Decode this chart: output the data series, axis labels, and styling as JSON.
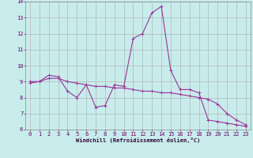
{
  "title": "",
  "xlabel": "Windchill (Refroidissement éolien,°C)",
  "ylabel": "",
  "bg_color": "#c8ecec",
  "line_color": "#993399",
  "grid_color": "#aaaaaa",
  "xlim": [
    -0.5,
    23.5
  ],
  "ylim": [
    6,
    14
  ],
  "xticks": [
    0,
    1,
    2,
    3,
    4,
    5,
    6,
    7,
    8,
    9,
    10,
    11,
    12,
    13,
    14,
    15,
    16,
    17,
    18,
    19,
    20,
    21,
    22,
    23
  ],
  "yticks": [
    6,
    7,
    8,
    9,
    10,
    11,
    12,
    13,
    14
  ],
  "series1_x": [
    0,
    1,
    2,
    3,
    4,
    5,
    6,
    7,
    8,
    9,
    10,
    11,
    12,
    13,
    14,
    15,
    16,
    17,
    18,
    19,
    20,
    21,
    22,
    23
  ],
  "series1_y": [
    8.9,
    9.0,
    9.4,
    9.3,
    8.4,
    8.0,
    8.8,
    7.4,
    7.5,
    8.8,
    8.7,
    11.7,
    12.0,
    13.3,
    13.7,
    9.7,
    8.5,
    8.5,
    8.3,
    6.6,
    6.5,
    6.4,
    6.3,
    6.2
  ],
  "series2_x": [
    0,
    1,
    2,
    3,
    4,
    5,
    6,
    7,
    8,
    9,
    10,
    11,
    12,
    13,
    14,
    15,
    16,
    17,
    18,
    19,
    20,
    21,
    22,
    23
  ],
  "series2_y": [
    9.0,
    9.0,
    9.2,
    9.2,
    9.0,
    8.9,
    8.8,
    8.7,
    8.7,
    8.6,
    8.6,
    8.5,
    8.4,
    8.4,
    8.3,
    8.3,
    8.2,
    8.1,
    8.0,
    7.9,
    7.6,
    7.0,
    6.6,
    6.3
  ],
  "marker": "+",
  "markersize": 3,
  "linewidth": 0.8,
  "tick_labelsize": 5,
  "xlabel_fontsize": 5,
  "spine_color": "#888888"
}
